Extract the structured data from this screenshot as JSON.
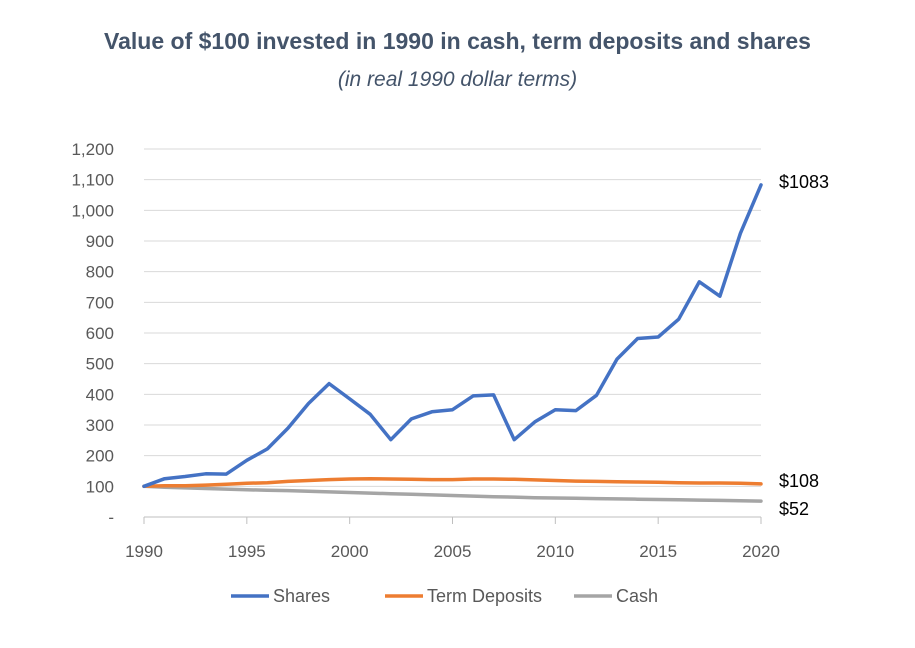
{
  "title": "Value of $100 invested in 1990 in cash, term deposits and shares",
  "subtitle": "(in real 1990 dollar terms)",
  "chart_data": {
    "type": "line",
    "title": "Value of $100 invested in 1990 in cash, term deposits and shares",
    "subtitle": "(in real 1990 dollar terms)",
    "xlabel": "",
    "ylabel": "",
    "x": [
      1990,
      1991,
      1992,
      1993,
      1994,
      1995,
      1996,
      1997,
      1998,
      1999,
      2000,
      2001,
      2002,
      2003,
      2004,
      2005,
      2006,
      2007,
      2008,
      2009,
      2010,
      2011,
      2012,
      2013,
      2014,
      2015,
      2016,
      2017,
      2018,
      2019,
      2020
    ],
    "xlim": [
      1990,
      2020
    ],
    "ylim": [
      0,
      1200
    ],
    "x_tick_labels": [
      "1990",
      "1995",
      "2000",
      "2005",
      "2010",
      "2015",
      "2020"
    ],
    "y_tick_labels": [
      "-",
      "100",
      "200",
      "300",
      "400",
      "500",
      "600",
      "700",
      "800",
      "900",
      "1,000",
      "1,100",
      "1,200"
    ],
    "grid": "horizontal",
    "legend": "bottom",
    "series": [
      {
        "name": "Shares",
        "color": "#4472c4",
        "values": [
          100,
          125,
          132,
          141,
          140,
          185,
          222,
          290,
          370,
          435,
          385,
          335,
          252,
          320,
          343,
          350,
          395,
          398,
          252,
          310,
          350,
          347,
          397,
          515,
          582,
          587,
          645,
          767,
          720,
          925,
          1083
        ],
        "end_label": "$1083"
      },
      {
        "name": "Term Deposits",
        "color": "#ed7d31",
        "values": [
          100,
          102,
          102,
          104,
          107,
          110,
          112,
          116,
          119,
          122,
          124,
          125,
          124,
          123,
          122,
          122,
          124,
          124,
          123,
          121,
          119,
          117,
          116,
          115,
          114,
          113,
          112,
          111,
          111,
          110,
          108
        ],
        "end_label": "$108"
      },
      {
        "name": "Cash",
        "color": "#a5a5a5",
        "values": [
          100,
          97,
          95,
          93,
          91,
          89,
          87,
          86,
          84,
          82,
          80,
          78,
          76,
          74,
          72,
          70,
          68,
          66,
          65,
          63,
          62,
          61,
          60,
          59,
          58,
          57,
          56,
          55,
          54,
          53,
          52
        ],
        "end_label": "$52"
      }
    ]
  }
}
